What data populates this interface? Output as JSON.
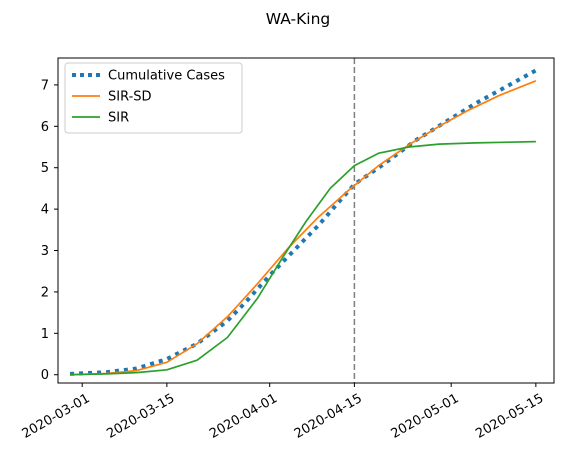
{
  "chart_data": {
    "type": "line",
    "title": "WA-King",
    "xlabel": "",
    "ylabel": "",
    "x_ticks": [
      "2020-03-01",
      "2020-03-15",
      "2020-04-01",
      "2020-04-15",
      "2020-05-01",
      "2020-05-15"
    ],
    "x_range": [
      "2020-02-26",
      "2020-05-18"
    ],
    "y_ticks": [
      0,
      1,
      2,
      3,
      4,
      5,
      6,
      7
    ],
    "ylim": [
      -0.2,
      7.65
    ],
    "vline": {
      "x": "2020-04-15",
      "color": "#7f7f7f",
      "style": "dashed"
    },
    "legend": {
      "placement": "top-left"
    },
    "grid": false,
    "series": [
      {
        "name": "Cumulative Cases",
        "color": "#1f77b4",
        "style": "dotted",
        "points": [
          [
            "2020-02-28",
            0.02
          ],
          [
            "2020-03-05",
            0.06
          ],
          [
            "2020-03-10",
            0.15
          ],
          [
            "2020-03-15",
            0.38
          ],
          [
            "2020-03-20",
            0.75
          ],
          [
            "2020-03-25",
            1.3
          ],
          [
            "2020-03-28",
            1.75
          ],
          [
            "2020-04-01",
            2.4
          ],
          [
            "2020-04-05",
            3.0
          ],
          [
            "2020-04-09",
            3.6
          ],
          [
            "2020-04-12",
            4.1
          ],
          [
            "2020-04-15",
            4.6
          ],
          [
            "2020-04-20",
            5.1
          ],
          [
            "2020-04-25",
            5.65
          ],
          [
            "2020-04-30",
            6.1
          ],
          [
            "2020-05-05",
            6.55
          ],
          [
            "2020-05-10",
            6.95
          ],
          [
            "2020-05-15",
            7.35
          ]
        ]
      },
      {
        "name": "SIR-SD",
        "color": "#ff7f0e",
        "style": "solid",
        "points": [
          [
            "2020-02-28",
            0.0
          ],
          [
            "2020-03-05",
            0.03
          ],
          [
            "2020-03-10",
            0.1
          ],
          [
            "2020-03-15",
            0.3
          ],
          [
            "2020-03-20",
            0.75
          ],
          [
            "2020-03-25",
            1.4
          ],
          [
            "2020-03-30",
            2.2
          ],
          [
            "2020-04-04",
            3.05
          ],
          [
            "2020-04-09",
            3.8
          ],
          [
            "2020-04-14",
            4.45
          ],
          [
            "2020-04-19",
            5.05
          ],
          [
            "2020-04-24",
            5.55
          ],
          [
            "2020-04-29",
            6.0
          ],
          [
            "2020-05-04",
            6.4
          ],
          [
            "2020-05-09",
            6.75
          ],
          [
            "2020-05-15",
            7.1
          ]
        ]
      },
      {
        "name": "SIR",
        "color": "#2ca02c",
        "style": "solid",
        "points": [
          [
            "2020-02-28",
            0.0
          ],
          [
            "2020-03-05",
            0.02
          ],
          [
            "2020-03-10",
            0.05
          ],
          [
            "2020-03-15",
            0.12
          ],
          [
            "2020-03-20",
            0.35
          ],
          [
            "2020-03-25",
            0.9
          ],
          [
            "2020-03-30",
            1.85
          ],
          [
            "2020-04-03",
            2.8
          ],
          [
            "2020-04-07",
            3.7
          ],
          [
            "2020-04-11",
            4.5
          ],
          [
            "2020-04-15",
            5.05
          ],
          [
            "2020-04-19",
            5.35
          ],
          [
            "2020-04-24",
            5.5
          ],
          [
            "2020-04-29",
            5.57
          ],
          [
            "2020-05-05",
            5.6
          ],
          [
            "2020-05-15",
            5.63
          ]
        ]
      }
    ]
  }
}
